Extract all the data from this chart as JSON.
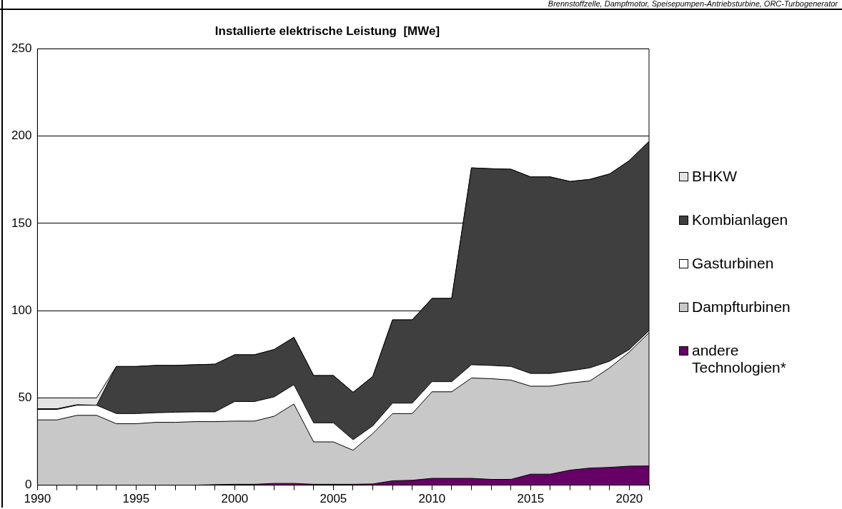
{
  "chart_data": {
    "type": "area",
    "title": "Installierte elektrische Leistung  [MWe]",
    "annotations": [
      "Brennstoffzelle, Dampfmotor, Speisepumpen-Antriebsturbine, ORC-Turbogenerator"
    ],
    "x": [
      1990,
      1991,
      1992,
      1993,
      1994,
      1995,
      1996,
      1997,
      1998,
      1999,
      2000,
      2001,
      2002,
      2003,
      2004,
      2005,
      2006,
      2007,
      2008,
      2009,
      2010,
      2011,
      2012,
      2013,
      2014,
      2015,
      2016,
      2017,
      2018,
      2019,
      2020,
      2021
    ],
    "stacked": true,
    "series": [
      {
        "name": "andere Technologien*",
        "color": "#660066",
        "values": [
          0,
          0,
          0,
          0,
          0,
          0,
          0,
          0,
          0,
          0.3,
          0.5,
          0.5,
          1,
          1,
          0.5,
          0.5,
          0.5,
          0.7,
          2.5,
          2.8,
          3.9,
          3.9,
          3.9,
          3.3,
          3.3,
          6.3,
          6.3,
          8.6,
          9.8,
          10.2,
          10.9,
          11
        ]
      },
      {
        "name": "Dampfturbinen",
        "color": "#c8c8c8",
        "values": [
          37.4,
          37.4,
          40,
          40,
          35.2,
          35.2,
          36,
          36,
          36.4,
          36.1,
          36.2,
          36.2,
          38.5,
          45.5,
          24.3,
          24.3,
          19.5,
          28.9,
          38.5,
          38.2,
          49.6,
          49.6,
          57.5,
          57.7,
          56.9,
          50.4,
          50.4,
          49.9,
          49.9,
          57,
          65.4,
          76.3
        ]
      },
      {
        "name": "Gasturbinen",
        "color": "#ffffff",
        "values": [
          6,
          6,
          5.8,
          5.8,
          5.8,
          5.8,
          5.5,
          5.8,
          5.6,
          5.6,
          11.2,
          11.2,
          11.1,
          11.1,
          10.9,
          10.9,
          6,
          4.4,
          6,
          6,
          5.8,
          5.8,
          7.6,
          7.6,
          7.8,
          7.3,
          7.3,
          7,
          7.5,
          3.8,
          1.4,
          1.2
        ]
      },
      {
        "name": "Kombianlagen",
        "color": "#3f3f3f",
        "values": [
          0.4,
          0.4,
          0.3,
          0,
          27,
          27,
          27.1,
          26.8,
          27,
          27.3,
          26.8,
          26.8,
          27.1,
          27.1,
          27.1,
          27.1,
          27.2,
          28.3,
          47.7,
          47.7,
          47.7,
          47.7,
          112.8,
          112.7,
          113,
          112.6,
          112.6,
          108.5,
          108,
          107.3,
          108.2,
          108.5
        ]
      },
      {
        "name": "BHKW",
        "color": "#e4e4e4",
        "values": [
          6.2,
          6.2,
          3.9,
          4.2,
          0,
          0,
          0,
          0,
          0,
          0,
          0,
          0,
          0,
          0,
          0,
          0,
          0,
          0,
          0,
          0,
          0,
          0,
          0,
          0,
          0,
          0,
          0,
          0,
          0,
          0,
          0,
          0
        ]
      }
    ],
    "xlim": [
      1990,
      2021
    ],
    "xticks": [
      1990,
      {
        "value": 1991,
        "label": null
      },
      {
        "value": 1992,
        "label": null
      },
      {
        "value": 1993,
        "label": null
      },
      {
        "value": 1994,
        "label": null
      },
      1995,
      {
        "value": 1996,
        "label": null
      },
      {
        "value": 1997,
        "label": null
      },
      {
        "value": 1998,
        "label": null
      },
      {
        "value": 1999,
        "label": null
      },
      2000,
      {
        "value": 2001,
        "label": null
      },
      {
        "value": 2002,
        "label": null
      },
      {
        "value": 2003,
        "label": null
      },
      {
        "value": 2004,
        "label": null
      },
      2005,
      {
        "value": 2006,
        "label": null
      },
      {
        "value": 2007,
        "label": null
      },
      {
        "value": 2008,
        "label": null
      },
      {
        "value": 2009,
        "label": null
      },
      2010,
      {
        "value": 2011,
        "label": null
      },
      {
        "value": 2012,
        "label": null
      },
      {
        "value": 2013,
        "label": null
      },
      {
        "value": 2014,
        "label": null
      },
      2015,
      {
        "value": 2016,
        "label": null
      },
      {
        "value": 2017,
        "label": null
      },
      {
        "value": 2018,
        "label": null
      },
      {
        "value": 2019,
        "label": null
      },
      2020,
      {
        "value": 2021,
        "label": null
      }
    ],
    "ylim": [
      0,
      250
    ],
    "yticks": [
      0,
      50,
      100,
      150,
      200,
      250
    ],
    "grid": "y",
    "legend": "right",
    "marker": "none"
  }
}
